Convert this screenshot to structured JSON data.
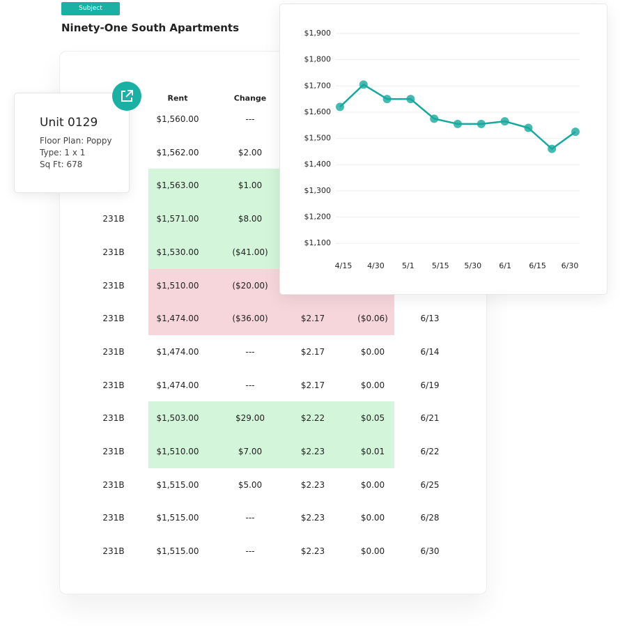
{
  "header": {
    "badge": "Subject",
    "title": "Ninety-One South Apartments"
  },
  "unit_card": {
    "title": "Unit 0129",
    "lines": [
      "Floor Plan: Poppy",
      "Type: 1 x 1",
      "Sq Ft: 678"
    ]
  },
  "table": {
    "headers": {
      "rent": "Rent",
      "change": "Change"
    },
    "rows": [
      {
        "rent": "$1,560.00",
        "change": "---"
      },
      {
        "rent": "$1,562.00",
        "change": "$2.00"
      },
      {
        "rent": "$1,563.00",
        "change": "$1.00",
        "highlight": "green"
      },
      {
        "unit": "231B",
        "rent": "$1,571.00",
        "change": "$8.00",
        "highlight": "green"
      },
      {
        "unit": "231B",
        "rent": "$1,530.00",
        "change": "($41.00)",
        "highlight": "green"
      },
      {
        "unit": "231B",
        "rent": "$1,510.00",
        "change": "($20.00)",
        "highlight": "red"
      },
      {
        "unit": "231B",
        "rent": "$1,474.00",
        "change": "($36.00)",
        "psf": "$2.17",
        "psf_change": "($0.06)",
        "date": "6/13",
        "highlight": "red"
      },
      {
        "unit": "231B",
        "rent": "$1,474.00",
        "change": "---",
        "psf": "$2.17",
        "psf_change": "$0.00",
        "date": "6/14"
      },
      {
        "unit": "231B",
        "rent": "$1,474.00",
        "change": "---",
        "psf": "$2.17",
        "psf_change": "$0.00",
        "date": "6/19"
      },
      {
        "unit": "231B",
        "rent": "$1,503.00",
        "change": "$29.00",
        "psf": "$2.22",
        "psf_change": "$0.05",
        "date": "6/21",
        "highlight": "green"
      },
      {
        "unit": "231B",
        "rent": "$1,510.00",
        "change": "$7.00",
        "psf": "$2.23",
        "psf_change": "$0.01",
        "date": "6/22",
        "highlight": "green"
      },
      {
        "unit": "231B",
        "rent": "$1,515.00",
        "change": "$5.00",
        "psf": "$2.23",
        "psf_change": "$0.00",
        "date": "6/25"
      },
      {
        "unit": "231B",
        "rent": "$1,515.00",
        "change": "---",
        "psf": "$2.23",
        "psf_change": "$0.00",
        "date": "6/28"
      },
      {
        "unit": "231B",
        "rent": "$1,515.00",
        "change": "---",
        "psf": "$2.23",
        "psf_change": "$0.00",
        "date": "6/30"
      }
    ]
  },
  "chart_data": {
    "type": "line",
    "color": "#17a99d",
    "values": [
      1620,
      1705,
      1650,
      1650,
      1575,
      1555,
      1555,
      1565,
      1540,
      1460,
      1525
    ],
    "xticks": [
      "4/15",
      "4/30",
      "5/1",
      "5/15",
      "5/30",
      "6/1",
      "6/15",
      "6/30"
    ],
    "ylim": [
      1050,
      1900
    ],
    "yticks": [
      {
        "value": 1100,
        "label": "$1,100"
      },
      {
        "value": 1200,
        "label": "$1,200"
      },
      {
        "value": 1300,
        "label": "$1,300"
      },
      {
        "value": 1400,
        "label": "$1,400"
      },
      {
        "value": 1500,
        "label": "$1,500"
      },
      {
        "value": 1600,
        "label": "$1,600"
      },
      {
        "value": 1700,
        "label": "$1,700"
      },
      {
        "value": 1800,
        "label": "$1,800"
      },
      {
        "value": 1900,
        "label": "$1,900"
      }
    ],
    "grid": true
  }
}
